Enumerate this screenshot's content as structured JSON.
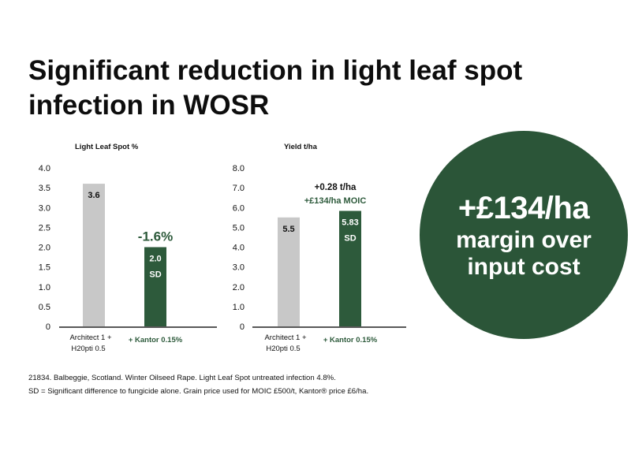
{
  "title": {
    "line1": "Significant reduction in light leaf spot",
    "line2": "infection in WOSR"
  },
  "colors": {
    "control_bar": "#c8c8c8",
    "treatment_bar": "#2d5a3b",
    "badge_bg": "#2b5538",
    "green_text": "#2d5a3b"
  },
  "chart_data": [
    {
      "type": "bar",
      "title": "Light Leaf Spot %",
      "categories": [
        [
          "Architect 1 +",
          "H20pti 0.5"
        ],
        [
          "+ Kantor 0.15%"
        ]
      ],
      "values": [
        3.6,
        2.0
      ],
      "value_labels": [
        "3.6",
        "2.0"
      ],
      "bar_sublabels": [
        "",
        "SD"
      ],
      "ylim": [
        0,
        4.0
      ],
      "yticks": [
        0,
        0.5,
        1.0,
        1.5,
        2.0,
        2.5,
        3.0,
        3.5,
        4.0
      ],
      "ytick_labels": [
        "0",
        "0.5",
        "1.0",
        "1.5",
        "2.0",
        "2.5",
        "3.0",
        "3.5",
        "4.0"
      ],
      "annotations": [
        "-1.6%"
      ],
      "grid": false
    },
    {
      "type": "bar",
      "title": "Yield t/ha",
      "categories": [
        [
          "Architect 1 +",
          "H20pti 0.5"
        ],
        [
          "+ Kantor 0.15%"
        ]
      ],
      "values": [
        5.5,
        5.83
      ],
      "value_labels": [
        "5.5",
        "5.83"
      ],
      "bar_sublabels": [
        "",
        "SD"
      ],
      "ylim": [
        0,
        8.0
      ],
      "yticks": [
        0,
        1.0,
        2.0,
        3.0,
        4.0,
        5.0,
        6.0,
        7.0,
        8.0
      ],
      "ytick_labels": [
        "0",
        "1.0",
        "2.0",
        "3.0",
        "4.0",
        "5.0",
        "6.0",
        "7.0",
        "8.0"
      ],
      "annotations": [
        "+0.28 t/ha",
        "+£134/ha MOIC"
      ],
      "grid": false
    }
  ],
  "badge": {
    "big": "+£134/ha",
    "line2": "margin over",
    "line3": "input cost"
  },
  "footnote": {
    "line1": "21834. Balbeggie, Scotland. Winter Oilseed Rape. Light Leaf Spot untreated infection 4.8%.",
    "line2": "SD = Significant difference to fungicide alone. Grain price used for MOIC £500/t, Kantor® price £6/ha."
  }
}
